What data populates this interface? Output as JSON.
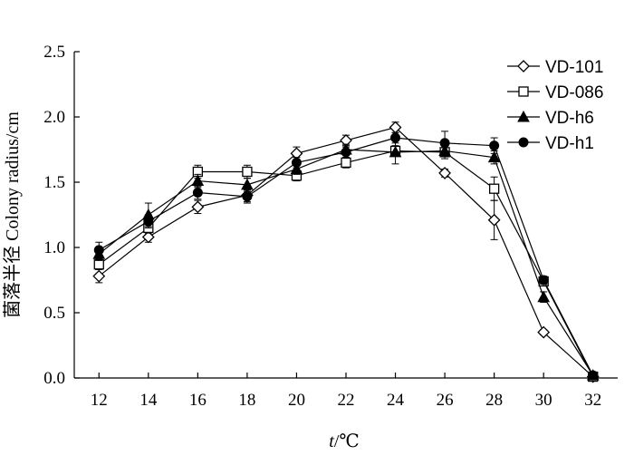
{
  "chart_data": {
    "type": "line",
    "xlabel_italic": "t",
    "xlabel_unit": "/℃",
    "ylabel": "菌落半径  Colony radius/cm",
    "xlim": [
      11,
      33
    ],
    "ylim": [
      0,
      2.5
    ],
    "x_ticks": [
      12,
      14,
      16,
      18,
      20,
      22,
      24,
      26,
      28,
      30,
      32
    ],
    "y_ticks": [
      "0.0",
      "0.5",
      "1.0",
      "1.5",
      "2.0",
      "2.5"
    ],
    "legend_position": "top-right",
    "grid": false,
    "x": [
      12,
      14,
      16,
      18,
      20,
      22,
      24,
      26,
      28,
      30,
      32
    ],
    "series": [
      {
        "name": "VD-101",
        "marker": "diamond-open",
        "values": [
          0.78,
          1.08,
          1.31,
          1.4,
          1.72,
          1.82,
          1.92,
          1.57,
          1.21,
          0.35,
          0.01
        ],
        "errors": [
          0.05,
          0.04,
          0.05,
          0.05,
          0.05,
          0.04,
          0.04,
          0.03,
          0.15,
          0.02,
          0.01
        ]
      },
      {
        "name": "VD-086",
        "marker": "square-open",
        "values": [
          0.87,
          1.15,
          1.58,
          1.58,
          1.55,
          1.65,
          1.74,
          1.73,
          1.45,
          0.74,
          0.01
        ],
        "errors": [
          0.04,
          0.04,
          0.05,
          0.05,
          0.04,
          0.04,
          0.04,
          0.05,
          0.09,
          0.03,
          0.01
        ]
      },
      {
        "name": "VD-h6",
        "marker": "triangle-filled",
        "values": [
          0.95,
          1.25,
          1.51,
          1.48,
          1.6,
          1.75,
          1.73,
          1.74,
          1.69,
          0.62,
          0.02
        ],
        "errors": [
          0.05,
          0.09,
          0.05,
          0.05,
          0.04,
          0.04,
          0.09,
          0.04,
          0.05,
          0.04,
          0.01
        ]
      },
      {
        "name": "VD-h1",
        "marker": "circle-filled",
        "values": [
          0.98,
          1.2,
          1.42,
          1.39,
          1.65,
          1.73,
          1.84,
          1.8,
          1.78,
          0.75,
          0.02
        ],
        "errors": [
          0.06,
          0.05,
          0.05,
          0.05,
          0.04,
          0.04,
          0.04,
          0.09,
          0.06,
          0.03,
          0.01
        ]
      }
    ]
  }
}
